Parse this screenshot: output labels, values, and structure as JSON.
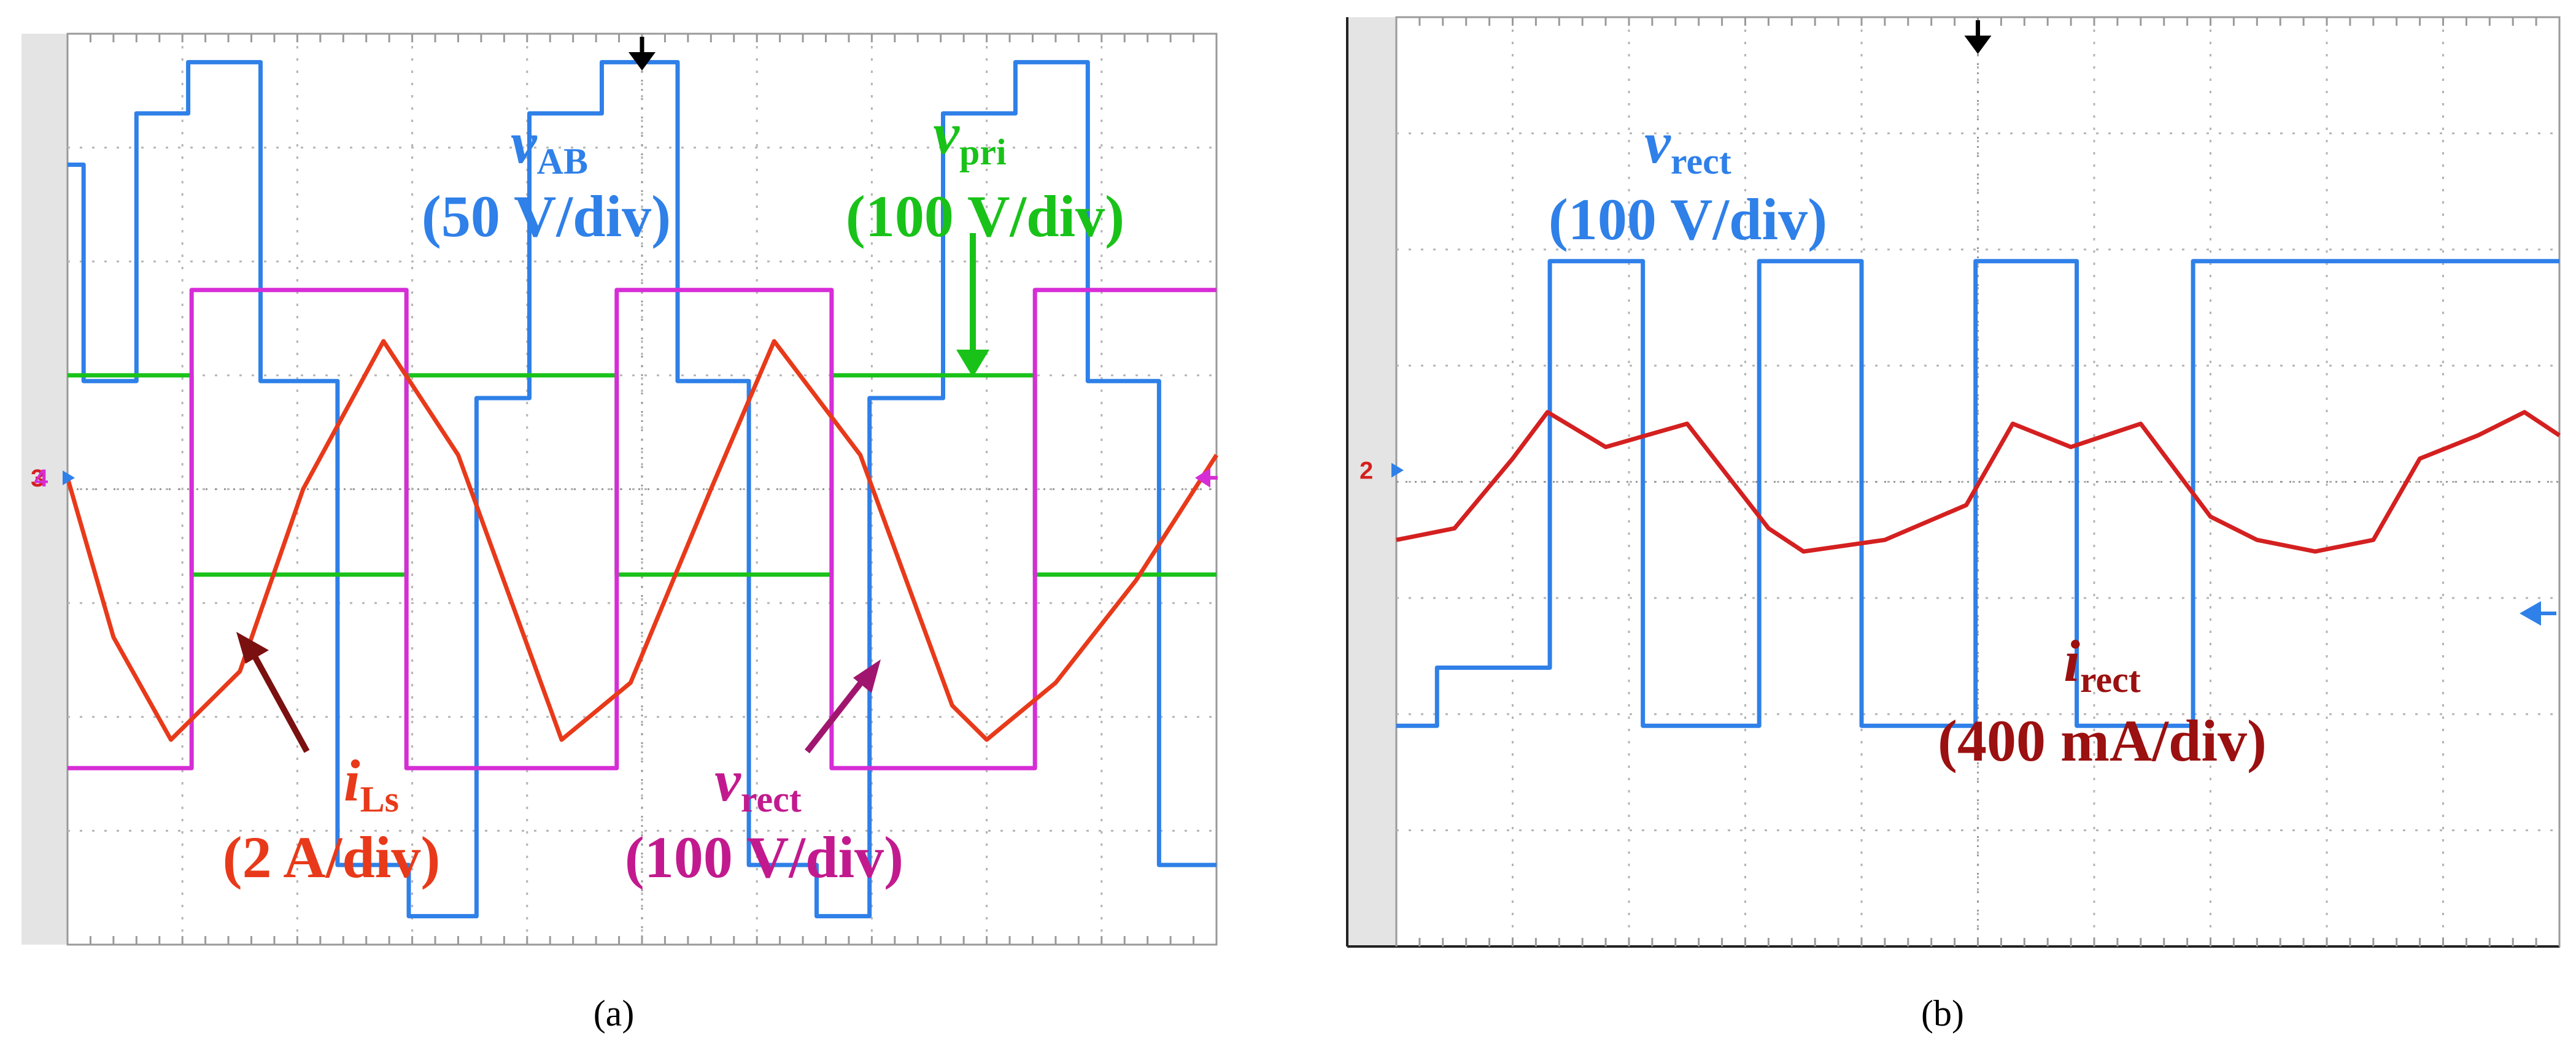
{
  "panels": [
    {
      "id": "a",
      "caption": "(a)",
      "chart_data": {
        "type": "line",
        "title": "",
        "xlabel": "",
        "ylabel": "",
        "grid": true,
        "divisions": {
          "x": 10,
          "y": 8
        },
        "xlim": [
          0,
          10
        ],
        "ylim": [
          -4,
          4
        ],
        "ground_markers": [
          "3",
          "4"
        ],
        "series": [
          {
            "name": "v_AB",
            "color": "#2f80e8",
            "label": {
              "symbol": "v",
              "sub": "AB",
              "scale": "(50 V/div)"
            },
            "x": [
              0,
              0.14,
              0.14,
              0.6,
              0.6,
              1.05,
              1.05,
              1.68,
              1.68,
              2.35,
              2.35,
              2.97,
              2.97,
              3.56,
              3.56,
              4.02,
              4.02,
              4.65,
              4.65,
              5.31,
              5.31,
              5.93,
              5.93,
              6.52,
              6.52,
              6.98,
              6.98,
              7.62,
              7.62,
              8.25,
              8.25,
              8.88,
              8.88,
              9.5,
              9.5,
              10
            ],
            "values": [
              2.85,
              2.85,
              0.95,
              0.95,
              3.3,
              3.3,
              3.75,
              3.75,
              0.95,
              0.95,
              -3.3,
              -3.3,
              -3.75,
              -3.75,
              0.8,
              0.8,
              3.3,
              3.3,
              3.75,
              3.75,
              0.95,
              0.95,
              -3.3,
              -3.3,
              -3.75,
              -3.75,
              0.8,
              0.8,
              3.3,
              3.3,
              3.75,
              3.75,
              0.95,
              0.95,
              -3.3,
              -3.3
            ]
          },
          {
            "name": "v_pri",
            "color": "#19c219",
            "label": {
              "symbol": "v",
              "sub": "pri",
              "scale": "(100 V/div)"
            },
            "x": [
              0,
              1.08,
              1.08,
              2.95,
              2.95,
              4.78,
              4.78,
              6.65,
              6.65,
              8.42,
              8.42,
              10
            ],
            "values": [
              1.0,
              1.0,
              -0.75,
              -0.75,
              1.0,
              1.0,
              -0.75,
              -0.75,
              1.0,
              1.0,
              -0.75,
              -0.75
            ]
          },
          {
            "name": "v_rect",
            "color": "#d62dd6",
            "label": {
              "symbol": "v",
              "sub": "rect",
              "scale": "(100 V/div)"
            },
            "x": [
              0,
              1.08,
              1.08,
              2.95,
              2.95,
              4.78,
              4.78,
              6.65,
              6.65,
              8.42,
              8.42,
              10
            ],
            "values": [
              -2.45,
              -2.45,
              1.75,
              1.75,
              -2.45,
              -2.45,
              1.75,
              1.75,
              -2.45,
              -2.45,
              1.75,
              1.75
            ]
          },
          {
            "name": "i_Ls",
            "color": "#e83a1a",
            "label": {
              "symbol": "i",
              "sub": "Ls",
              "scale": "(2 A/div)"
            },
            "x": [
              0,
              0.4,
              0.9,
              1.5,
              2.05,
              2.75,
              3.4,
              4.3,
              4.9,
              5.6,
              6.15,
              6.9,
              7.7,
              8.0,
              8.6,
              9.3,
              10
            ],
            "values": [
              0.1,
              -1.3,
              -2.2,
              -1.6,
              0.0,
              1.3,
              0.3,
              -2.2,
              -1.7,
              0.0,
              1.3,
              0.3,
              -1.9,
              -2.2,
              -1.7,
              -0.8,
              0.3
            ]
          }
        ]
      }
    },
    {
      "id": "b",
      "caption": "(b)",
      "chart_data": {
        "type": "line",
        "title": "",
        "xlabel": "",
        "ylabel": "",
        "grid": true,
        "divisions": {
          "x": 10,
          "y": 8
        },
        "xlim": [
          0,
          10
        ],
        "ylim": [
          -4,
          4
        ],
        "ground_markers": [
          "2"
        ],
        "series": [
          {
            "name": "v_rect",
            "color": "#2f80e8",
            "label": {
              "symbol": "v",
              "sub": "rect",
              "scale": "(100 V/div)"
            },
            "x": [
              0,
              0.35,
              0.35,
              1.32,
              1.32,
              2.12,
              2.12,
              3.12,
              3.12,
              4.0,
              4.0,
              4.98,
              4.98,
              5.85,
              5.85,
              6.85,
              6.85,
              7.75,
              7.75,
              10
            ],
            "values": [
              -2.1,
              -2.1,
              -1.6,
              -1.6,
              1.9,
              1.9,
              -2.1,
              -2.1,
              1.9,
              1.9,
              -2.1,
              -2.1,
              1.9,
              1.9,
              -2.1,
              -2.1,
              1.9,
              1.9,
              1.9,
              1.9
            ]
          },
          {
            "name": "i_rect",
            "color": "#d42020",
            "label": {
              "symbol": "i",
              "sub": "rect",
              "scale": "(400 mA/div)"
            },
            "x": [
              0,
              0.5,
              1.0,
              1.3,
              1.8,
              2.5,
              3.2,
              3.5,
              4.2,
              4.9,
              5.3,
              5.8,
              6.4,
              7.0,
              7.4,
              7.9,
              8.4,
              8.8,
              9.3,
              9.7,
              10
            ],
            "values": [
              -0.5,
              -0.4,
              0.2,
              0.6,
              0.3,
              0.5,
              -0.4,
              -0.6,
              -0.5,
              -0.2,
              0.5,
              0.3,
              0.5,
              -0.3,
              -0.5,
              -0.6,
              -0.5,
              0.2,
              0.4,
              0.6,
              0.4
            ]
          }
        ]
      }
    }
  ]
}
